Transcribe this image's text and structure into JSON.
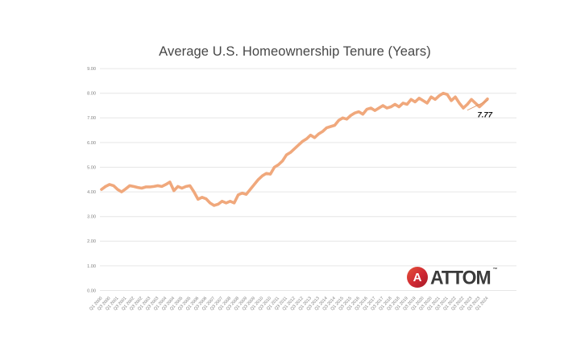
{
  "page": {
    "background": "#ffffff"
  },
  "chart_data": {
    "type": "line",
    "title": "Average U.S. Homeownership Tenure (Years)",
    "frequency": "quarterly",
    "x_start": "Q1 2000",
    "x_end": "Q1 2024",
    "x_tick_labels": [
      "Q1 2000",
      "Q3 2000",
      "Q1 2001",
      "Q3 2001",
      "Q1 2002",
      "Q3 2002",
      "Q1 2003",
      "Q3 2003",
      "Q1 2004",
      "Q3 2004",
      "Q1 2005",
      "Q3 2005",
      "Q1 2006",
      "Q3 2006",
      "Q1 2007",
      "Q3 2007",
      "Q1 2008",
      "Q3 2008",
      "Q1 2009",
      "Q3 2009",
      "Q1 2010",
      "Q3 2010",
      "Q1 2011",
      "Q3 2011",
      "Q1 2012",
      "Q3 2012",
      "Q1 2013",
      "Q3 2013",
      "Q1 2014",
      "Q3 2014",
      "Q1 2015",
      "Q3 2015",
      "Q1 2016",
      "Q3 2016",
      "Q1 2017",
      "Q3 2017",
      "Q1 2018",
      "Q3 2018",
      "Q1 2019",
      "Q3 2019",
      "Q1 2020",
      "Q3 2020",
      "Q1 2021",
      "Q3 2021",
      "Q1 2022",
      "Q3 2022",
      "Q1 2023",
      "Q3 2023",
      "Q1 2024"
    ],
    "values": [
      4.1,
      4.22,
      4.3,
      4.25,
      4.1,
      4.0,
      4.12,
      4.25,
      4.22,
      4.18,
      4.15,
      4.2,
      4.2,
      4.22,
      4.25,
      4.22,
      4.3,
      4.4,
      4.05,
      4.22,
      4.15,
      4.22,
      4.25,
      4.0,
      3.7,
      3.78,
      3.72,
      3.55,
      3.45,
      3.5,
      3.62,
      3.55,
      3.62,
      3.55,
      3.88,
      3.95,
      3.9,
      4.1,
      4.3,
      4.5,
      4.65,
      4.75,
      4.72,
      5.0,
      5.1,
      5.25,
      5.5,
      5.6,
      5.75,
      5.9,
      6.05,
      6.15,
      6.3,
      6.2,
      6.35,
      6.45,
      6.6,
      6.65,
      6.7,
      6.9,
      7.0,
      6.95,
      7.1,
      7.2,
      7.25,
      7.15,
      7.35,
      7.4,
      7.3,
      7.4,
      7.5,
      7.4,
      7.45,
      7.55,
      7.45,
      7.6,
      7.55,
      7.75,
      7.65,
      7.8,
      7.7,
      7.6,
      7.85,
      7.75,
      7.9,
      8.0,
      7.95,
      7.7,
      7.85,
      7.6,
      7.4,
      7.55,
      7.75,
      7.6,
      7.45,
      7.6,
      7.77
    ],
    "ylim": [
      0,
      9
    ],
    "y_tick_step": 1,
    "y_tick_labels": [
      "0.00",
      "1.00",
      "2.00",
      "3.00",
      "4.00",
      "5.00",
      "6.00",
      "7.00",
      "8.00",
      "9.00"
    ],
    "grid": "horizontal",
    "legend": "none",
    "line_color": "#f0a87c",
    "grid_color": "#e6e6e6",
    "tick_label_color": "#808080",
    "end_label": "7.77",
    "end_value": 7.77
  },
  "branding": {
    "logo_text": "ATTOM",
    "logo_icon_letter": "A",
    "trademark": "™",
    "logo_color": "#cf2733",
    "logo_text_color": "#3a3a3a"
  }
}
